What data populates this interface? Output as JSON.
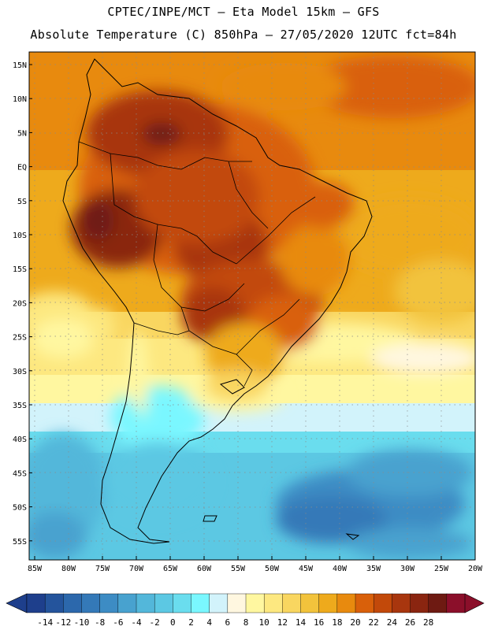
{
  "header": {
    "line1": "CPTEC/INPE/MCT –  Eta Model 15km – GFS",
    "line2": "Absolute Temperature (C) 850hPa – 27/05/2020 12UTC fct=84h"
  },
  "map": {
    "lat_labels": [
      "15N",
      "10N",
      "5N",
      "EQ",
      "5S",
      "10S",
      "15S",
      "20S",
      "25S",
      "30S",
      "35S",
      "40S",
      "45S",
      "50S",
      "55S"
    ],
    "lon_labels": [
      "85W",
      "80W",
      "75W",
      "70W",
      "65W",
      "60W",
      "55W",
      "50W",
      "45W",
      "40W",
      "35W",
      "30W",
      "25W",
      "20W"
    ],
    "field": "Absolute Temperature (C) 850hPa",
    "region": "South America"
  },
  "colorbar": {
    "ticks": [
      "-14",
      "-12",
      "-10",
      "-8",
      "-6",
      "-4",
      "-2",
      "0",
      "2",
      "4",
      "6",
      "8",
      "10",
      "12",
      "14",
      "16",
      "18",
      "20",
      "22",
      "24",
      "26",
      "28"
    ],
    "colors": [
      "#1e3f8c",
      "#24549c",
      "#2c68ac",
      "#3479b8",
      "#3d8cc4",
      "#48a2cf",
      "#53b7da",
      "#5cc8e3",
      "#6addee",
      "#7af7ff",
      "#d2f3fb",
      "#fff7e0",
      "#fff7a0",
      "#fde880",
      "#f9d660",
      "#f2c33c",
      "#eeaa1c",
      "#e88a0e",
      "#d9600a",
      "#c2490a",
      "#a8360e",
      "#8a2510",
      "#6e1a12",
      "#8b0f2a"
    ],
    "under_color": "#1e3f8c",
    "over_color": "#8b0f2a"
  }
}
